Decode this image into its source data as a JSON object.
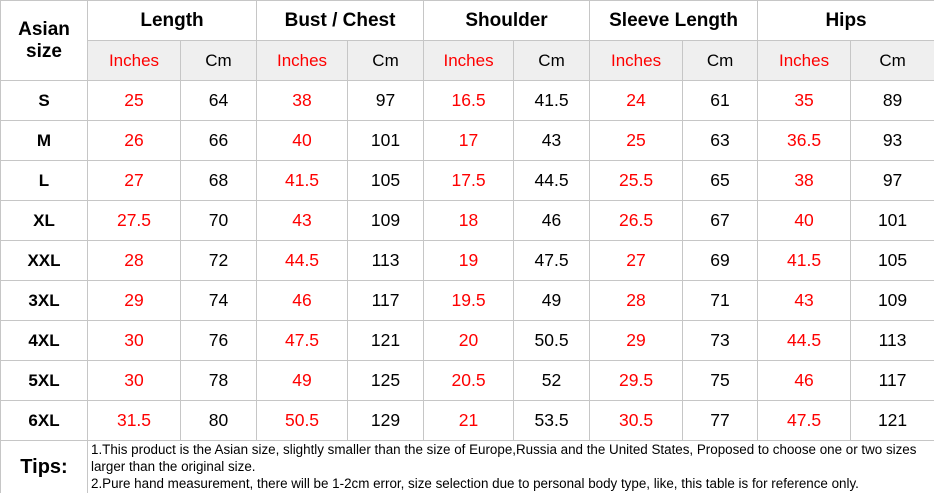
{
  "table": {
    "corner_header": "Asian size",
    "groups": [
      {
        "label": "Length"
      },
      {
        "label": "Bust / Chest"
      },
      {
        "label": "Shoulder"
      },
      {
        "label": "Sleeve Length"
      },
      {
        "label": "Hips"
      }
    ],
    "sub_headers": {
      "inches": "Inches",
      "cm": "Cm"
    },
    "rows": [
      {
        "size": "S",
        "values": [
          25,
          64,
          38,
          97,
          16.5,
          41.5,
          24,
          61,
          35,
          89
        ]
      },
      {
        "size": "M",
        "values": [
          26,
          66,
          40,
          101,
          17,
          43,
          25,
          63,
          36.5,
          93
        ]
      },
      {
        "size": "L",
        "values": [
          27,
          68,
          41.5,
          105,
          17.5,
          44.5,
          25.5,
          65,
          38,
          97
        ]
      },
      {
        "size": "XL",
        "values": [
          27.5,
          70,
          43,
          109,
          18,
          46,
          26.5,
          67,
          40,
          101
        ]
      },
      {
        "size": "XXL",
        "values": [
          28,
          72,
          44.5,
          113,
          19,
          47.5,
          27,
          69,
          41.5,
          105
        ]
      },
      {
        "size": "3XL",
        "values": [
          29,
          74,
          46,
          117,
          19.5,
          49,
          28,
          71,
          43,
          109
        ]
      },
      {
        "size": "4XL",
        "values": [
          30,
          76,
          47.5,
          121,
          20,
          50.5,
          29,
          73,
          44.5,
          113
        ]
      },
      {
        "size": "5XL",
        "values": [
          30,
          78,
          49,
          125,
          20.5,
          52,
          29.5,
          75,
          46,
          117
        ]
      },
      {
        "size": "6XL",
        "values": [
          31.5,
          80,
          50.5,
          129,
          21,
          53.5,
          30.5,
          77,
          47.5,
          121
        ]
      }
    ],
    "tips": {
      "label": "Tips:",
      "lines": [
        "1.This product is the Asian size, slightly smaller than the size of Europe,Russia and the United States, Proposed to choose one or two sizes larger than the original size.",
        "2.Pure hand measurement, there will be 1-2cm error, size selection due to personal body type, like, this table is for reference only."
      ]
    }
  },
  "colors": {
    "accent_red": "#fe0000",
    "text_black": "#000000",
    "grid_border": "#c6c6c6",
    "unit_row_background": "#efefef"
  }
}
